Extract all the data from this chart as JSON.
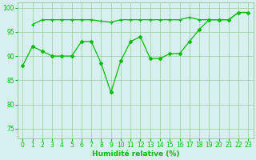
{
  "title": "",
  "xlabel": "Humidité relative (%)",
  "ylabel": "",
  "bg_color": "#d6f0f0",
  "line_color": "#00bb00",
  "grid_color": "#99cc99",
  "spine_color": "#88bb88",
  "ylim": [
    73,
    101
  ],
  "xlim": [
    -0.5,
    23.5
  ],
  "yticks": [
    75,
    80,
    85,
    90,
    95,
    100
  ],
  "xticks": [
    0,
    1,
    2,
    3,
    4,
    5,
    6,
    7,
    8,
    9,
    10,
    11,
    12,
    13,
    14,
    15,
    16,
    17,
    18,
    19,
    20,
    21,
    22,
    23
  ],
  "line1_x": [
    0,
    1,
    2,
    3,
    4,
    5,
    6,
    7,
    8,
    9,
    10,
    11,
    12,
    13,
    14,
    15,
    16,
    17,
    18,
    19,
    20,
    21,
    22,
    23
  ],
  "line1_y": [
    88,
    92,
    91,
    90,
    90,
    90,
    93,
    93,
    88.5,
    82.5,
    89,
    93,
    94,
    89.5,
    89.5,
    90.5,
    90.5,
    93,
    95.5,
    97.5,
    97.5,
    97.5,
    99,
    99
  ],
  "line2_x": [
    1,
    2,
    3,
    4,
    5,
    6,
    7,
    8,
    9,
    10,
    11,
    12,
    13,
    14,
    15,
    16,
    17,
    18,
    19,
    20,
    21,
    22,
    23
  ],
  "line2_y": [
    96.5,
    97.5,
    97.5,
    97.5,
    97.5,
    97.5,
    97.5,
    97.2,
    97,
    97.5,
    97.5,
    97.5,
    97.5,
    97.5,
    97.5,
    97.5,
    98,
    97.5,
    97.5,
    97.5,
    97.5,
    99,
    99
  ]
}
